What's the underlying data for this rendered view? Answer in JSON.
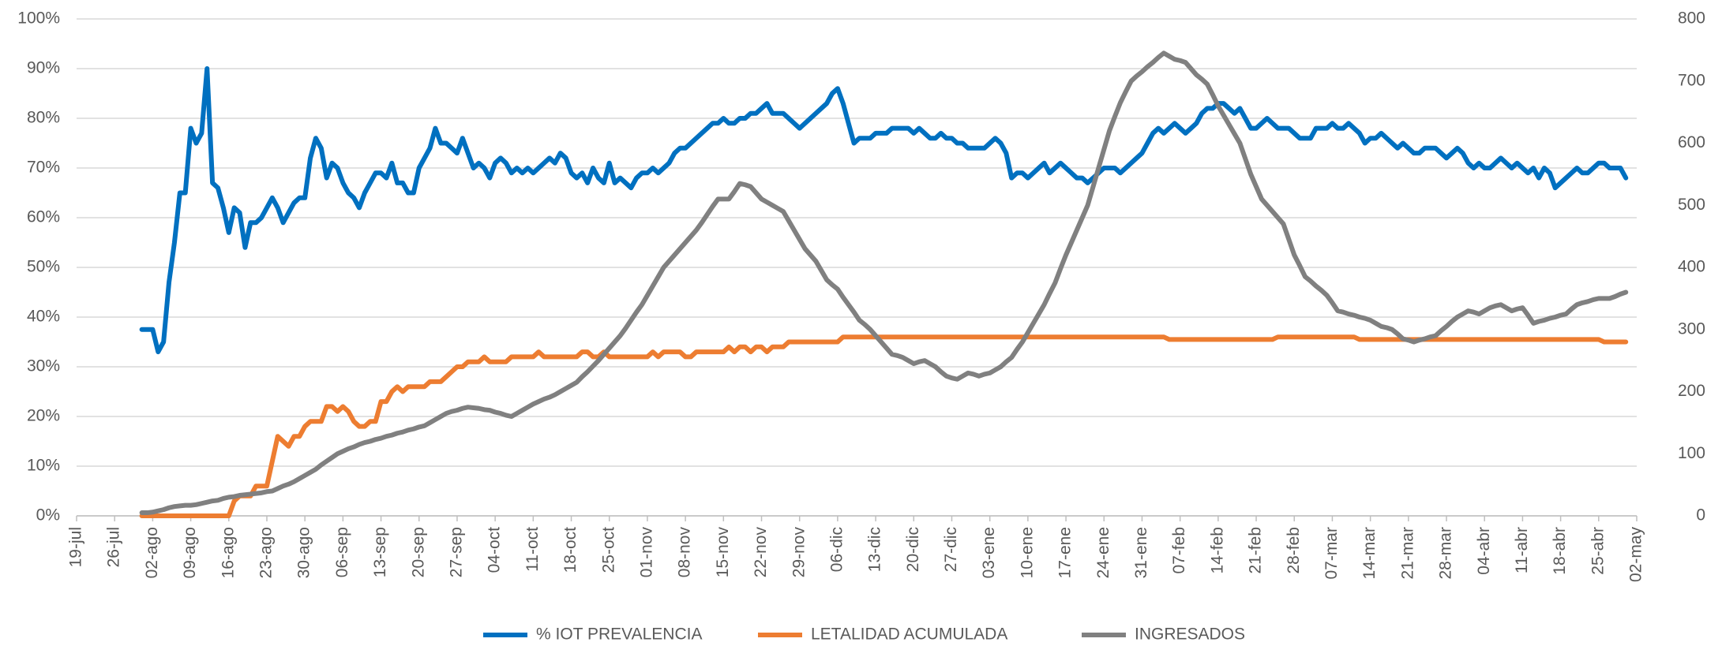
{
  "chart_data": {
    "type": "line",
    "categories": [
      "19-jul",
      null,
      null,
      null,
      null,
      null,
      null,
      "26-jul",
      null,
      null,
      null,
      null,
      null,
      null,
      "02-ago",
      null,
      null,
      null,
      null,
      null,
      null,
      "09-ago",
      null,
      null,
      null,
      null,
      null,
      null,
      "16-ago",
      null,
      null,
      null,
      null,
      null,
      null,
      "23-ago",
      null,
      null,
      null,
      null,
      null,
      null,
      "30-ago",
      null,
      null,
      null,
      null,
      null,
      null,
      "06-sep",
      null,
      null,
      null,
      null,
      null,
      null,
      "13-sep",
      null,
      null,
      null,
      null,
      null,
      null,
      "20-sep",
      null,
      null,
      null,
      null,
      null,
      null,
      "27-sep",
      null,
      null,
      null,
      null,
      null,
      null,
      "04-oct",
      null,
      null,
      null,
      null,
      null,
      null,
      "11-oct",
      null,
      null,
      null,
      null,
      null,
      null,
      "18-oct",
      null,
      null,
      null,
      null,
      null,
      null,
      "25-oct",
      null,
      null,
      null,
      null,
      null,
      null,
      "01-nov",
      null,
      null,
      null,
      null,
      null,
      null,
      "08-nov",
      null,
      null,
      null,
      null,
      null,
      null,
      "15-nov",
      null,
      null,
      null,
      null,
      null,
      null,
      "22-nov",
      null,
      null,
      null,
      null,
      null,
      null,
      "29-nov",
      null,
      null,
      null,
      null,
      null,
      null,
      "06-dic",
      null,
      null,
      null,
      null,
      null,
      null,
      "13-dic",
      null,
      null,
      null,
      null,
      null,
      null,
      "20-dic",
      null,
      null,
      null,
      null,
      null,
      null,
      "27-dic",
      null,
      null,
      null,
      null,
      null,
      null,
      "03-ene",
      null,
      null,
      null,
      null,
      null,
      null,
      "10-ene",
      null,
      null,
      null,
      null,
      null,
      null,
      "17-ene",
      null,
      null,
      null,
      null,
      null,
      null,
      "24-ene",
      null,
      null,
      null,
      null,
      null,
      null,
      "31-ene",
      null,
      null,
      null,
      null,
      null,
      null,
      "07-feb",
      null,
      null,
      null,
      null,
      null,
      null,
      "14-feb",
      null,
      null,
      null,
      null,
      null,
      null,
      "21-feb",
      null,
      null,
      null,
      null,
      null,
      null,
      "28-feb",
      null,
      null,
      null,
      null,
      null,
      null,
      "07-mar",
      null,
      null,
      null,
      null,
      null,
      null,
      "14-mar",
      null,
      null,
      null,
      null,
      null,
      null,
      "21-mar",
      null,
      null,
      null,
      null,
      null,
      null,
      "28-mar",
      null,
      null,
      null,
      null,
      null,
      null,
      "04-abr",
      null,
      null,
      null,
      null,
      null,
      null,
      "11-abr",
      null,
      null,
      null,
      null,
      null,
      null,
      "18-abr",
      null,
      null,
      null,
      null,
      null,
      null,
      "25-abr",
      null,
      null,
      null,
      null,
      null,
      null,
      "02-may"
    ],
    "series": [
      {
        "name": "% IOT PREVALENCIA",
        "color": "#0070c0",
        "axis": "y",
        "values": [
          null,
          null,
          null,
          null,
          null,
          null,
          null,
          null,
          null,
          null,
          null,
          null,
          37.5,
          37.5,
          37.5,
          33,
          35,
          47,
          55,
          65,
          65,
          78,
          75,
          77,
          90,
          67,
          66,
          62,
          57,
          62,
          61,
          54,
          59,
          59,
          60,
          62,
          64,
          62,
          59,
          61,
          63,
          64,
          64,
          72,
          76,
          74,
          68,
          71,
          70,
          67,
          65,
          64,
          62,
          65,
          67,
          69,
          69,
          68,
          71,
          67,
          67,
          65,
          65,
          70,
          72,
          74,
          78,
          75,
          75,
          74,
          73,
          76,
          73,
          70,
          71,
          70,
          68,
          71,
          72,
          71,
          69,
          70,
          69,
          70,
          69,
          70,
          71,
          72,
          71,
          73,
          72,
          69,
          68,
          69,
          67,
          70,
          68,
          67,
          71,
          67,
          68,
          67,
          66,
          68,
          69,
          69,
          70,
          69,
          70,
          71,
          73,
          74,
          74,
          75,
          76,
          77,
          78,
          79,
          79,
          80,
          79,
          79,
          80,
          80,
          81,
          81,
          82,
          83,
          81,
          81,
          81,
          80,
          79,
          78,
          79,
          80,
          81,
          82,
          83,
          85,
          86,
          83,
          79,
          75,
          76,
          76,
          76,
          77,
          77,
          77,
          78,
          78,
          78,
          78,
          77,
          78,
          77,
          76,
          76,
          77,
          76,
          76,
          75,
          75,
          74,
          74,
          74,
          74,
          75,
          76,
          75,
          73,
          68,
          69,
          69,
          68,
          69,
          70,
          71,
          69,
          70,
          71,
          70,
          69,
          68,
          68,
          67,
          68,
          69,
          70,
          70,
          70,
          69,
          70,
          71,
          72,
          73,
          75,
          77,
          78,
          77,
          78,
          79,
          78,
          77,
          78,
          79,
          81,
          82,
          82,
          83,
          83,
          82,
          81,
          82,
          80,
          78,
          78,
          79,
          80,
          79,
          78,
          78,
          78,
          77,
          76,
          76,
          76,
          78,
          78,
          78,
          79,
          78,
          78,
          79,
          78,
          77,
          75,
          76,
          76,
          77,
          76,
          75,
          74,
          75,
          74,
          73,
          73,
          74,
          74,
          74,
          73,
          72,
          73,
          74,
          73,
          71,
          70,
          71,
          70,
          70,
          71,
          72,
          71,
          70,
          71,
          70,
          69,
          70,
          68,
          70,
          69,
          66,
          67,
          68,
          69,
          70,
          69,
          69,
          70,
          71,
          71,
          70,
          70,
          70,
          68,
          null,
          null
        ]
      },
      {
        "name": "LETALIDAD ACUMULADA",
        "color": "#ed7d31",
        "axis": "y",
        "values": [
          null,
          null,
          null,
          null,
          null,
          null,
          null,
          null,
          null,
          null,
          null,
          null,
          0,
          0,
          0,
          0,
          0,
          0,
          0,
          0,
          0,
          0,
          0,
          0,
          0,
          0,
          0,
          0,
          0,
          3,
          4,
          4,
          4,
          6,
          6,
          6,
          11,
          16,
          15,
          14,
          16,
          16,
          18,
          19,
          19,
          19,
          22,
          22,
          21,
          22,
          21,
          19,
          18,
          18,
          19,
          19,
          23,
          23,
          25,
          26,
          25,
          26,
          26,
          26,
          26,
          27,
          27,
          27,
          28,
          29,
          30,
          30,
          31,
          31,
          31,
          32,
          31,
          31,
          31,
          31,
          32,
          32,
          32,
          32,
          32,
          33,
          32,
          32,
          32,
          32,
          32,
          32,
          32,
          33,
          33,
          32,
          32,
          33,
          32,
          32,
          32,
          32,
          32,
          32,
          32,
          32,
          33,
          32,
          33,
          33,
          33,
          33,
          32,
          32,
          33,
          33,
          33,
          33,
          33,
          33,
          34,
          33,
          34,
          34,
          33,
          34,
          34,
          33,
          34,
          34,
          34,
          35,
          35,
          35,
          35,
          35,
          35,
          35,
          35,
          35,
          35,
          36,
          36,
          36,
          36,
          36,
          36,
          36,
          36,
          36,
          36,
          36,
          36,
          36,
          36,
          36,
          36,
          36,
          36,
          36,
          36,
          36,
          36,
          36,
          36,
          36,
          36,
          36,
          36,
          36,
          36,
          36,
          36,
          36,
          36,
          36,
          36,
          36,
          36,
          36,
          36,
          36,
          36,
          36,
          36,
          36,
          36,
          36,
          36,
          36,
          36,
          36,
          36,
          36,
          36,
          36,
          36,
          36,
          36,
          36,
          36,
          35.5,
          35.5,
          35.5,
          35.5,
          35.5,
          35.5,
          35.5,
          35.5,
          35.5,
          35.5,
          35.5,
          35.5,
          35.5,
          35.5,
          35.5,
          35.5,
          35.5,
          35.5,
          35.5,
          35.5,
          36,
          36,
          36,
          36,
          36,
          36,
          36,
          36,
          36,
          36,
          36,
          36,
          36,
          36,
          36,
          35.5,
          35.5,
          35.5,
          35.5,
          35.5,
          35.5,
          35.5,
          35.5,
          35.5,
          35.5,
          35.5,
          35.5,
          35.5,
          35.5,
          35.5,
          35.5,
          35.5,
          35.5,
          35.5,
          35.5,
          35.5,
          35.5,
          35.5,
          35.5,
          35.5,
          35.5,
          35.5,
          35.5,
          35.5,
          35.5,
          35.5,
          35.5,
          35.5,
          35.5,
          35.5,
          35.5,
          35.5,
          35.5,
          35.5,
          35.5,
          35.5,
          35.5,
          35.5,
          35.5,
          35.5,
          35,
          35,
          35,
          35,
          35,
          null,
          null
        ]
      },
      {
        "name": "INGRESADOS",
        "color": "#808080",
        "axis": "y2",
        "values": [
          null,
          null,
          null,
          null,
          null,
          null,
          null,
          null,
          null,
          null,
          null,
          null,
          5,
          5,
          6,
          8,
          10,
          13,
          15,
          16,
          17,
          17,
          18,
          20,
          22,
          24,
          25,
          28,
          30,
          31,
          33,
          34,
          35,
          36,
          37,
          39,
          40,
          44,
          48,
          51,
          55,
          60,
          65,
          70,
          75,
          82,
          88,
          94,
          100,
          104,
          108,
          111,
          115,
          118,
          120,
          123,
          125,
          128,
          130,
          133,
          135,
          138,
          140,
          143,
          145,
          150,
          155,
          160,
          165,
          168,
          170,
          173,
          175,
          174,
          173,
          171,
          170,
          167,
          165,
          162,
          160,
          165,
          170,
          175,
          180,
          184,
          188,
          191,
          195,
          200,
          205,
          210,
          215,
          224,
          232,
          241,
          250,
          260,
          270,
          280,
          290,
          302,
          315,
          328,
          340,
          355,
          370,
          385,
          400,
          410,
          420,
          430,
          440,
          450,
          460,
          472,
          485,
          498,
          510,
          510,
          510,
          522,
          535,
          533,
          530,
          520,
          510,
          505,
          500,
          495,
          490,
          475,
          460,
          445,
          430,
          420,
          410,
          395,
          380,
          372,
          365,
          352,
          340,
          328,
          315,
          308,
          300,
          290,
          280,
          270,
          260,
          258,
          255,
          250,
          245,
          248,
          250,
          245,
          240,
          232,
          225,
          222,
          220,
          225,
          230,
          228,
          225,
          228,
          230,
          235,
          240,
          248,
          255,
          268,
          280,
          295,
          310,
          325,
          340,
          358,
          375,
          398,
          420,
          440,
          460,
          480,
          500,
          530,
          560,
          590,
          620,
          643,
          665,
          683,
          700,
          708,
          715,
          723,
          730,
          738,
          745,
          740,
          735,
          733,
          730,
          720,
          710,
          703,
          695,
          678,
          660,
          645,
          630,
          615,
          600,
          575,
          550,
          530,
          510,
          500,
          490,
          480,
          470,
          445,
          420,
          403,
          385,
          378,
          370,
          363,
          355,
          343,
          330,
          328,
          325,
          323,
          320,
          318,
          315,
          310,
          305,
          303,
          300,
          293,
          285,
          283,
          280,
          283,
          285,
          288,
          290,
          298,
          305,
          313,
          320,
          325,
          330,
          328,
          325,
          330,
          335,
          338,
          340,
          335,
          330,
          333,
          335,
          323,
          310,
          313,
          315,
          318,
          320,
          323,
          325,
          333,
          340,
          343,
          345,
          348,
          350,
          350,
          350,
          353,
          357,
          360,
          null,
          null
        ]
      }
    ],
    "ylim": [
      0,
      100
    ],
    "yticks": [
      {
        "value": 0,
        "label": "0%"
      },
      {
        "value": 10,
        "label": "10%"
      },
      {
        "value": 20,
        "label": "20%"
      },
      {
        "value": 30,
        "label": "30%"
      },
      {
        "value": 40,
        "label": "40%"
      },
      {
        "value": 50,
        "label": "50%"
      },
      {
        "value": 60,
        "label": "60%"
      },
      {
        "value": 70,
        "label": "70%"
      },
      {
        "value": 80,
        "label": "80%"
      },
      {
        "value": 90,
        "label": "90%"
      },
      {
        "value": 100,
        "label": "100%"
      }
    ],
    "y2lim": [
      0,
      800
    ],
    "y2ticks": [
      0,
      100,
      200,
      300,
      400,
      500,
      600,
      700,
      800
    ],
    "grid": true,
    "legend": "bottom"
  }
}
